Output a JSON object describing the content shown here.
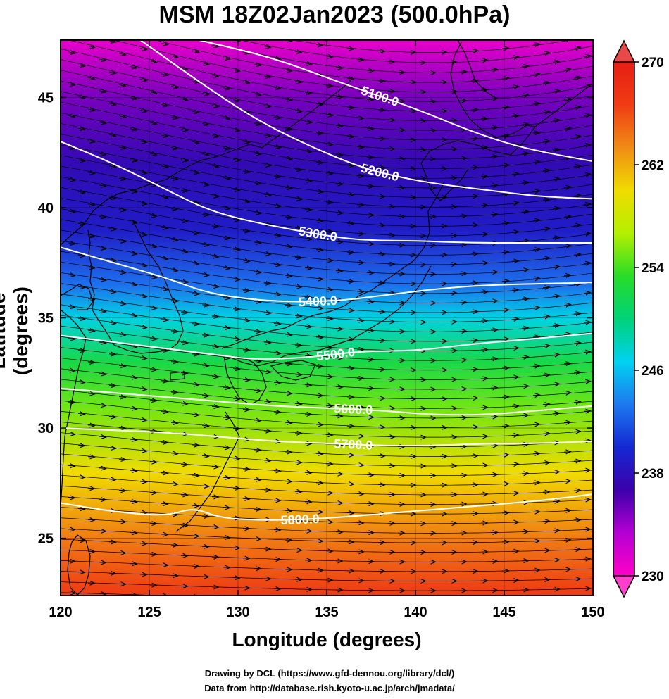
{
  "title": "MSM 18Z02Jan2023 (500.0hPa)",
  "xlabel": "Longitude (degrees)",
  "ylabel": "Latitude  (degrees)",
  "credits": [
    "Drawing by DCL (https://www.gfd-dennou.org/library/dcl/)",
    "Data from http://database.rish.kyoto-u.ac.jp/arch/jmadata/"
  ],
  "chart_data": {
    "type": "heatmap",
    "xlim": [
      120,
      150
    ],
    "ylim": [
      22.4,
      47.6
    ],
    "x_ticks": [
      120,
      125,
      130,
      135,
      140,
      145,
      150
    ],
    "y_ticks": [
      25,
      30,
      35,
      40,
      45
    ],
    "colorbar": {
      "min": 230,
      "max": 270,
      "ticks": [
        230,
        238,
        246,
        254,
        262,
        270
      ],
      "stops": [
        "#ff00c8",
        "#b400d2",
        "#3c00aa",
        "#1428d2",
        "#1e78f0",
        "#00d2f0",
        "#00d278",
        "#28dc28",
        "#b4f000",
        "#f0dc00",
        "#f08c14",
        "#f03c14",
        "#e61e14"
      ]
    },
    "shading_by_latitude": [
      {
        "lat": 47.6,
        "value": 231
      },
      {
        "lat": 45,
        "value": 235
      },
      {
        "lat": 42,
        "value": 237.5
      },
      {
        "lat": 39,
        "value": 239
      },
      {
        "lat": 36.5,
        "value": 243
      },
      {
        "lat": 35,
        "value": 247
      },
      {
        "lat": 33,
        "value": 252
      },
      {
        "lat": 31,
        "value": 255
      },
      {
        "lat": 28,
        "value": 260
      },
      {
        "lat": 25,
        "value": 264
      },
      {
        "lat": 22.4,
        "value": 267
      }
    ],
    "contours": [
      {
        "level": 5100,
        "label": "5100.0",
        "points": [
          [
            127.8,
            47.6
          ],
          [
            132,
            46.8
          ],
          [
            136,
            45.6
          ],
          [
            140,
            44.5
          ],
          [
            143,
            43.5
          ],
          [
            146,
            42.7
          ],
          [
            150,
            42.1
          ]
        ]
      },
      {
        "level": 5200,
        "label": "5200.0",
        "points": [
          [
            124.5,
            47.6
          ],
          [
            128,
            45.6
          ],
          [
            131,
            44
          ],
          [
            134,
            42.8
          ],
          [
            137,
            41.8
          ],
          [
            139,
            41.4
          ],
          [
            141,
            41.1
          ],
          [
            144,
            40.8
          ],
          [
            147,
            40.5
          ],
          [
            150,
            40.4
          ]
        ]
      },
      {
        "level": 5300,
        "label": "5300.0",
        "points": [
          [
            120,
            43
          ],
          [
            123,
            42
          ],
          [
            126,
            40.8
          ],
          [
            128,
            40
          ],
          [
            130,
            39.5
          ],
          [
            133,
            39
          ],
          [
            136,
            38.6
          ],
          [
            138,
            38.5
          ],
          [
            140,
            38.5
          ],
          [
            143,
            38.4
          ],
          [
            146,
            38.4
          ],
          [
            150,
            38.4
          ]
        ]
      },
      {
        "level": 5400,
        "label": "5400.0",
        "points": [
          [
            120,
            38.2
          ],
          [
            123,
            37.5
          ],
          [
            126,
            36.8
          ],
          [
            128,
            36.2
          ],
          [
            130,
            35.9
          ],
          [
            133,
            35.7
          ],
          [
            136,
            35.8
          ],
          [
            138,
            36
          ],
          [
            141,
            36.3
          ],
          [
            144,
            36.5
          ],
          [
            150,
            36.6
          ]
        ]
      },
      {
        "level": 5500,
        "label": "5500.0",
        "points": [
          [
            120,
            34.2
          ],
          [
            123,
            33.9
          ],
          [
            126,
            33.6
          ],
          [
            129,
            33.3
          ],
          [
            131,
            33.1
          ],
          [
            134,
            33.2
          ],
          [
            137,
            33.5
          ],
          [
            140,
            33.5
          ],
          [
            143,
            33.8
          ],
          [
            146,
            34
          ],
          [
            150,
            34.3
          ]
        ]
      },
      {
        "level": 5600,
        "label": "5600.0",
        "points": [
          [
            120,
            31.8
          ],
          [
            123,
            31.6
          ],
          [
            126,
            31.4
          ],
          [
            129,
            31.2
          ],
          [
            132,
            31
          ],
          [
            135,
            30.9
          ],
          [
            138,
            30.8
          ],
          [
            141,
            30.6
          ],
          [
            144,
            30.6
          ],
          [
            147,
            30.8
          ],
          [
            150,
            31
          ]
        ]
      },
      {
        "level": 5700,
        "label": "5700.0",
        "points": [
          [
            120,
            30
          ],
          [
            123,
            29.9
          ],
          [
            126,
            29.8
          ],
          [
            129,
            29.6
          ],
          [
            132,
            29.4
          ],
          [
            135,
            29.3
          ],
          [
            138,
            29.2
          ],
          [
            141,
            29.2
          ],
          [
            144,
            29.3
          ],
          [
            147,
            29.3
          ],
          [
            150,
            29.4
          ]
        ]
      },
      {
        "level": 5800,
        "label": "5800.0",
        "points": [
          [
            120,
            26.6
          ],
          [
            123,
            26.2
          ],
          [
            126,
            26
          ],
          [
            127.5,
            26.4
          ],
          [
            129,
            25.9
          ],
          [
            132,
            25.8
          ],
          [
            135,
            25.9
          ],
          [
            138,
            26.1
          ],
          [
            141,
            26.3
          ],
          [
            144,
            26.5
          ],
          [
            147,
            26.7
          ],
          [
            150,
            27
          ]
        ]
      }
    ]
  }
}
